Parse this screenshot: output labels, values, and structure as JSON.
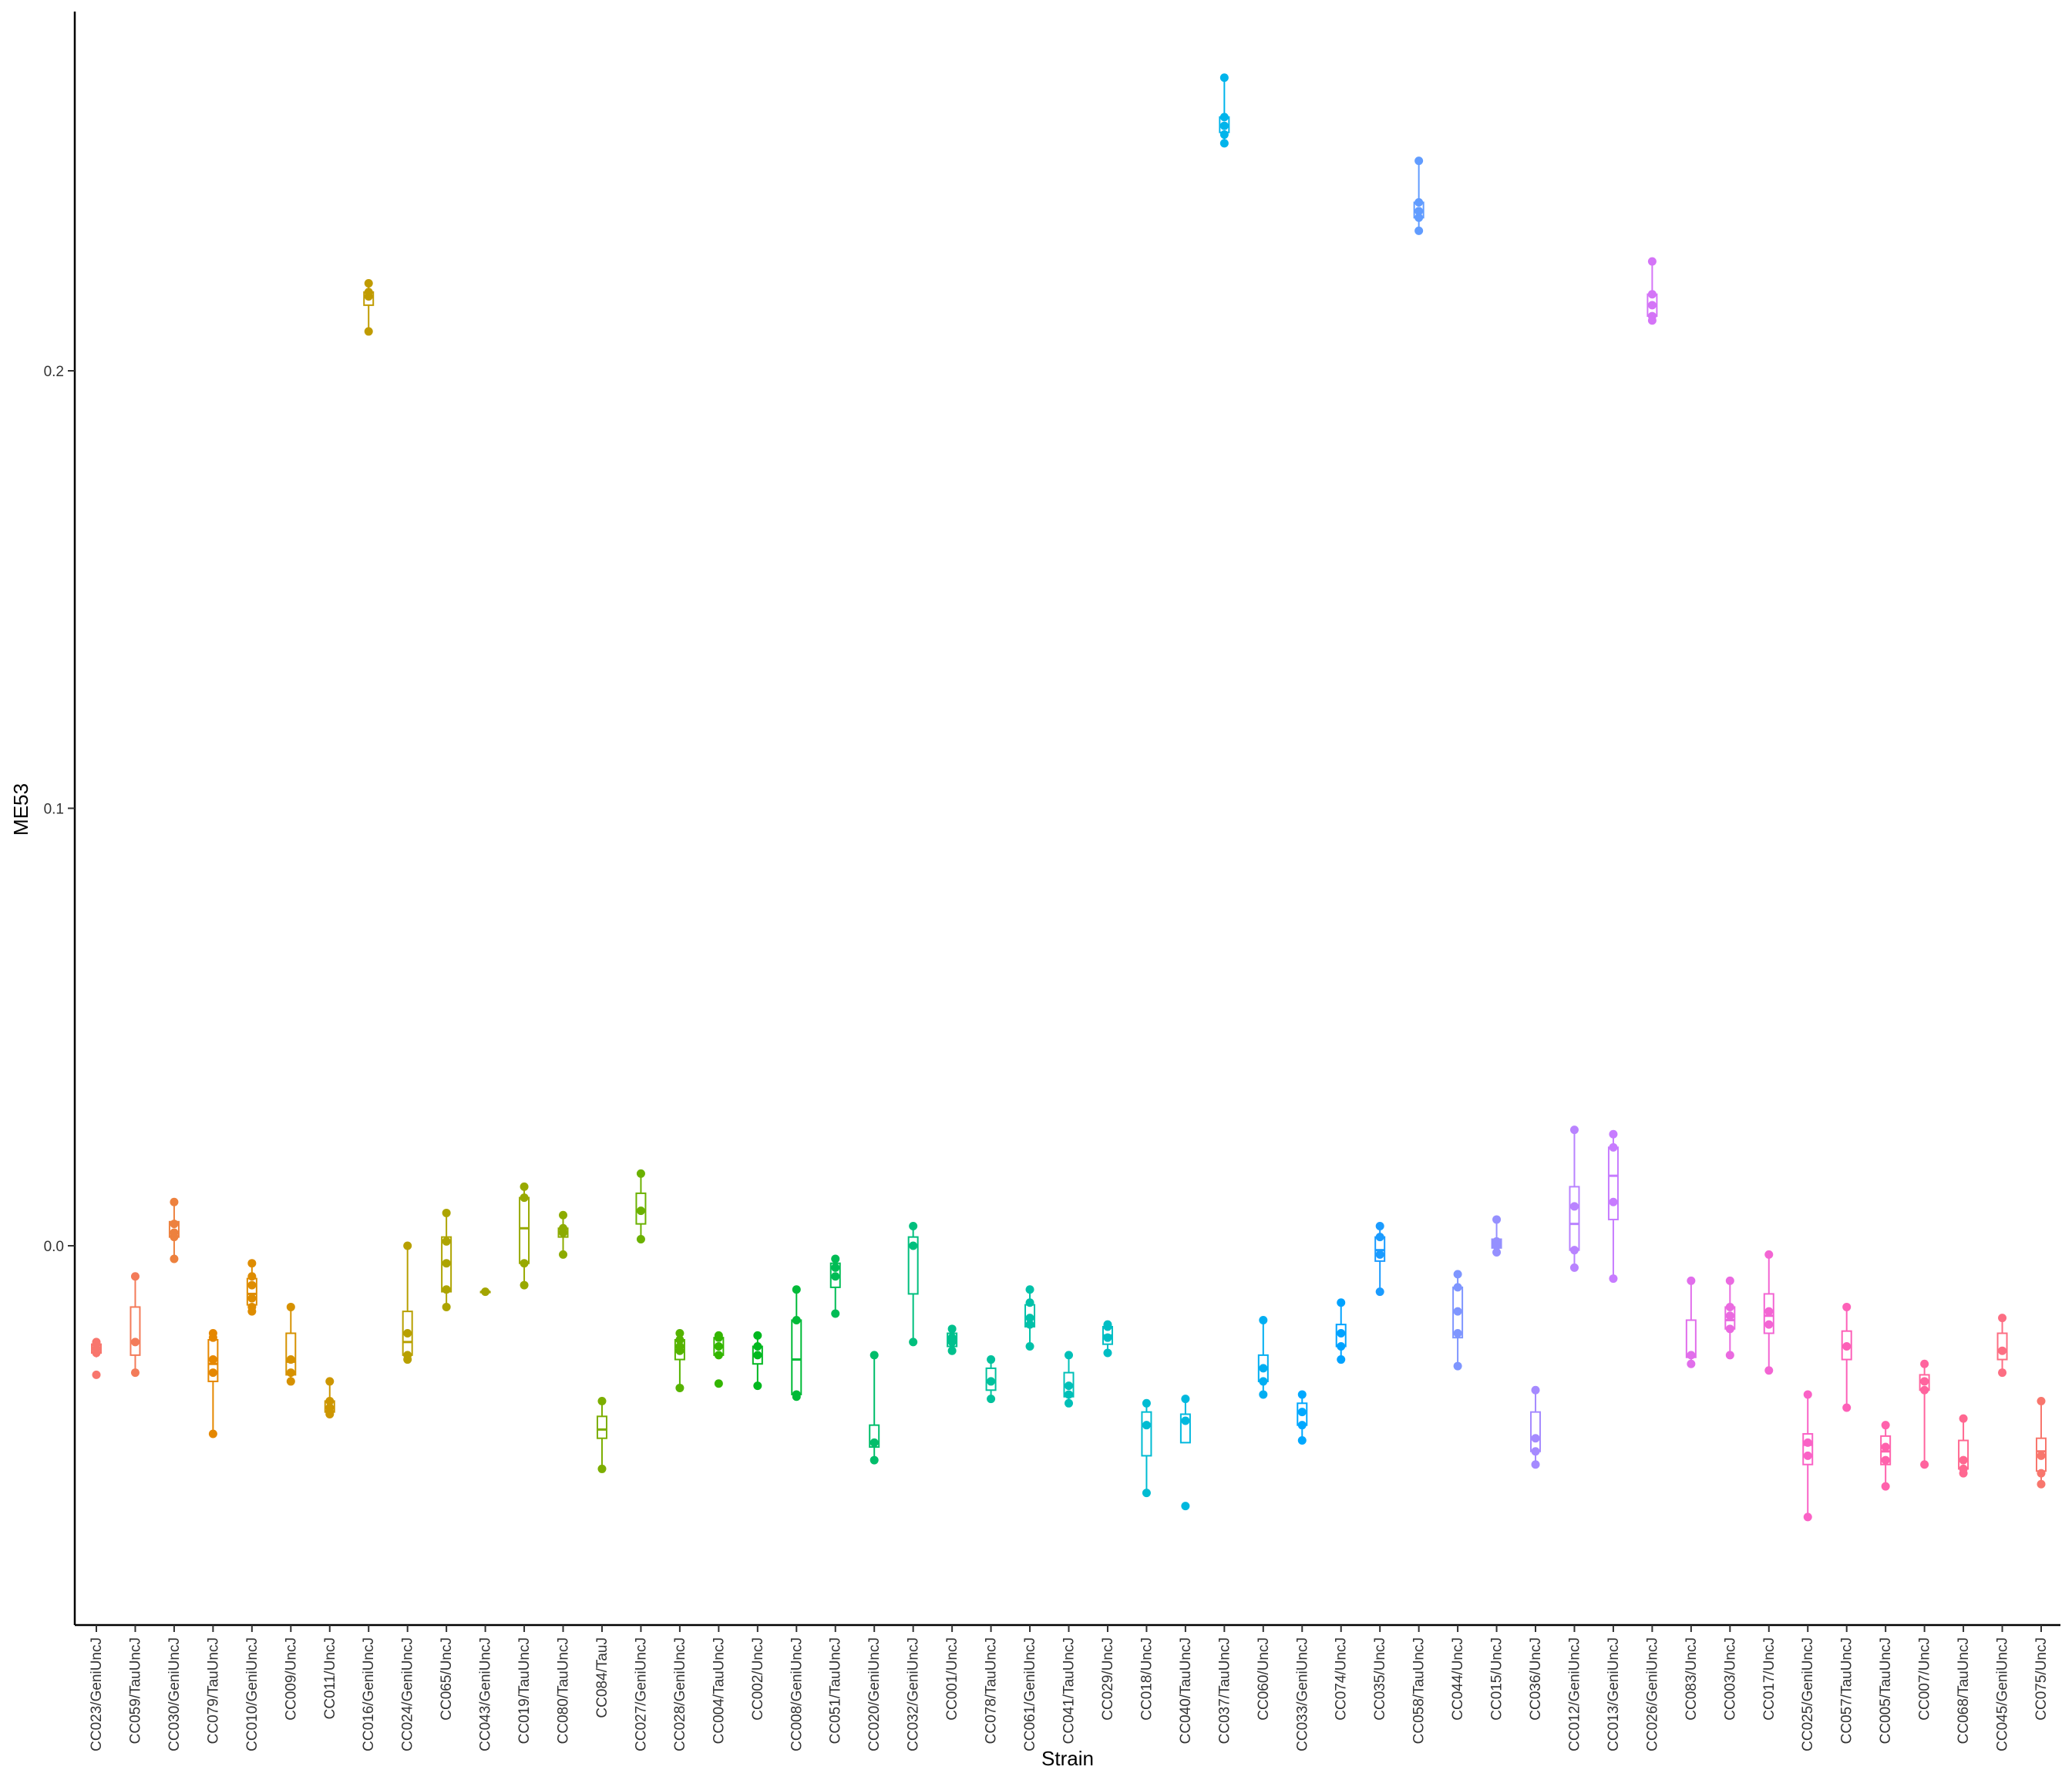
{
  "chart_data": {
    "type": "boxplot",
    "xlabel": "Strain",
    "ylabel": "ME53",
    "ylim": [
      -0.066,
      0.28
    ],
    "yticks": [
      0.0,
      0.1,
      0.2
    ],
    "ytick_labels": [
      "0.0",
      "0.1",
      "0.2"
    ],
    "grid": false,
    "legend": "none",
    "groups": [
      {
        "strain": "CC023/GeniUncJ",
        "color": "#F8766D",
        "box": [
          -0.0255,
          -0.0245,
          -0.0235,
          -0.0225,
          -0.022
        ],
        "points": [
          -0.0295,
          -0.0245,
          -0.0235,
          -0.0225,
          -0.022
        ]
      },
      {
        "strain": "CC059/TauUncJ",
        "color": "#F37B59",
        "box": [
          -0.029,
          -0.025,
          -0.022,
          -0.014,
          -0.007
        ],
        "points": [
          -0.029,
          -0.022,
          -0.007
        ]
      },
      {
        "strain": "CC030/GeniUncJ",
        "color": "#ED813E",
        "box": [
          -0.003,
          0.002,
          0.003,
          0.0055,
          0.01
        ],
        "points": [
          -0.003,
          0.002,
          0.003,
          0.005,
          0.01
        ]
      },
      {
        "strain": "CC079/TauUncJ",
        "color": "#E58700",
        "box": [
          -0.043,
          -0.031,
          -0.027,
          -0.0215,
          -0.02
        ],
        "points": [
          -0.043,
          -0.029,
          -0.026,
          -0.021,
          -0.02
        ]
      },
      {
        "strain": "CC010/GeniUncJ",
        "color": "#DE8C00",
        "box": [
          -0.015,
          -0.0135,
          -0.011,
          -0.0075,
          -0.004
        ],
        "points": [
          -0.015,
          -0.014,
          -0.012,
          -0.009,
          -0.007,
          -0.004
        ]
      },
      {
        "strain": "CC009/UncJ",
        "color": "#D69100",
        "box": [
          -0.031,
          -0.0295,
          -0.0265,
          -0.02,
          -0.014
        ],
        "points": [
          -0.031,
          -0.029,
          -0.026,
          -0.014
        ]
      },
      {
        "strain": "CC011/UncJ",
        "color": "#CD9600",
        "box": [
          -0.0385,
          -0.038,
          -0.037,
          -0.0355,
          -0.031
        ],
        "points": [
          -0.0385,
          -0.038,
          -0.037,
          -0.0355,
          -0.031
        ]
      },
      {
        "strain": "CC016/GeniUncJ",
        "color": "#C09B00",
        "box": [
          0.209,
          0.215,
          0.217,
          0.218,
          0.22
        ],
        "points": [
          0.209,
          0.217,
          0.218,
          0.22
        ]
      },
      {
        "strain": "CC024/GeniUncJ",
        "color": "#B8A000",
        "box": [
          -0.026,
          -0.025,
          -0.022,
          -0.015,
          0.0
        ],
        "points": [
          -0.026,
          -0.025,
          -0.02,
          0.0
        ]
      },
      {
        "strain": "CC065/UncJ",
        "color": "#ADA400",
        "box": [
          -0.014,
          -0.0105,
          -0.004,
          0.002,
          0.0075
        ],
        "points": [
          -0.014,
          -0.01,
          -0.004,
          0.001,
          0.0075
        ]
      },
      {
        "strain": "CC043/GeniUncJ",
        "color": "#A3A500",
        "box": [
          -0.0105,
          -0.0105,
          -0.0105,
          -0.0105,
          -0.0105
        ],
        "points": [
          -0.0105
        ]
      },
      {
        "strain": "CC019/TauUncJ",
        "color": "#98A900",
        "box": [
          -0.009,
          -0.004,
          0.004,
          0.011,
          0.0135
        ],
        "points": [
          -0.009,
          -0.004,
          0.011,
          0.0135
        ]
      },
      {
        "strain": "CC080/TauUncJ",
        "color": "#8CAB00",
        "box": [
          -0.002,
          0.002,
          0.003,
          0.004,
          0.007
        ],
        "points": [
          -0.002,
          0.003,
          0.004,
          0.007
        ]
      },
      {
        "strain": "CC084/TauJ",
        "color": "#7CAE00",
        "box": [
          -0.051,
          -0.044,
          -0.042,
          -0.039,
          -0.0355
        ],
        "points": [
          -0.051,
          -0.0355
        ]
      },
      {
        "strain": "CC027/GeniUncJ",
        "color": "#6BB100",
        "box": [
          0.0015,
          0.005,
          0.008,
          0.012,
          0.0165
        ],
        "points": [
          0.0015,
          0.008,
          0.0165
        ]
      },
      {
        "strain": "CC028/GeniUncJ",
        "color": "#55B300",
        "box": [
          -0.0325,
          -0.026,
          -0.024,
          -0.0215,
          -0.02
        ],
        "points": [
          -0.0325,
          -0.024,
          -0.023,
          -0.0215,
          -0.02
        ]
      },
      {
        "strain": "CC004/TauUncJ",
        "color": "#33B600",
        "box": [
          -0.025,
          -0.025,
          -0.023,
          -0.021,
          -0.0205
        ],
        "points": [
          -0.0315,
          -0.025,
          -0.023,
          -0.021,
          -0.0205
        ]
      },
      {
        "strain": "CC002/UncJ",
        "color": "#00B81F",
        "box": [
          -0.032,
          -0.027,
          -0.025,
          -0.023,
          -0.0205
        ],
        "points": [
          -0.032,
          -0.025,
          -0.023,
          -0.0205
        ]
      },
      {
        "strain": "CC008/GeniUncJ",
        "color": "#00BA38",
        "box": [
          -0.0345,
          -0.034,
          -0.026,
          -0.017,
          -0.01
        ],
        "points": [
          -0.0345,
          -0.034,
          -0.017,
          -0.01
        ]
      },
      {
        "strain": "CC051/TauUncJ",
        "color": "#00BC55",
        "box": [
          -0.0155,
          -0.0095,
          -0.007,
          -0.004,
          -0.003
        ],
        "points": [
          -0.0155,
          -0.007,
          -0.005,
          -0.003
        ]
      },
      {
        "strain": "CC020/GeniUncJ",
        "color": "#00BD6A",
        "box": [
          -0.049,
          -0.046,
          -0.045,
          -0.041,
          -0.025
        ],
        "points": [
          -0.049,
          -0.045,
          -0.025
        ]
      },
      {
        "strain": "CC032/GeniUncJ",
        "color": "#00BF7D",
        "box": [
          -0.022,
          -0.011,
          0.0,
          0.002,
          0.0045
        ],
        "points": [
          -0.022,
          0.0,
          0.0045
        ]
      },
      {
        "strain": "CC001/UncJ",
        "color": "#00C08D",
        "box": [
          -0.024,
          -0.023,
          -0.0215,
          -0.02,
          -0.019
        ],
        "points": [
          -0.024,
          -0.022,
          -0.021,
          -0.019
        ]
      },
      {
        "strain": "CC078/TauUncJ",
        "color": "#00C19C",
        "box": [
          -0.035,
          -0.033,
          -0.031,
          -0.028,
          -0.026
        ],
        "points": [
          -0.035,
          -0.031,
          -0.026
        ]
      },
      {
        "strain": "CC061/GeniUncJ",
        "color": "#00C1A9",
        "box": [
          -0.023,
          -0.0185,
          -0.0165,
          -0.0135,
          -0.01
        ],
        "points": [
          -0.023,
          -0.018,
          -0.0165,
          -0.013,
          -0.01
        ]
      },
      {
        "strain": "CC041/TauUncJ",
        "color": "#00C0B8",
        "box": [
          -0.036,
          -0.0345,
          -0.032,
          -0.029,
          -0.025
        ],
        "points": [
          -0.036,
          -0.034,
          -0.032,
          -0.025
        ]
      },
      {
        "strain": "CC029/UncJ",
        "color": "#00BEC4",
        "box": [
          -0.0245,
          -0.0225,
          -0.0205,
          -0.0185,
          -0.018
        ],
        "points": [
          -0.0245,
          -0.021,
          -0.0185,
          -0.018
        ]
      },
      {
        "strain": "CC018/UncJ",
        "color": "#00BCD2",
        "box": [
          -0.0565,
          -0.048,
          -0.041,
          -0.038,
          -0.036
        ],
        "points": [
          -0.0565,
          -0.041,
          -0.036
        ]
      },
      {
        "strain": "CC040/TauUncJ",
        "color": "#00B8DE",
        "box": [
          -0.045,
          -0.045,
          -0.04,
          -0.0385,
          -0.035
        ],
        "points": [
          -0.0595,
          -0.04,
          -0.035
        ]
      },
      {
        "strain": "CC037/TauUncJ",
        "color": "#00B4EB",
        "box": [
          0.252,
          0.2545,
          0.256,
          0.258,
          0.267
        ],
        "points": [
          0.252,
          0.254,
          0.256,
          0.258,
          0.267
        ]
      },
      {
        "strain": "CC060/UncJ",
        "color": "#00AEF2",
        "box": [
          -0.034,
          -0.031,
          -0.028,
          -0.025,
          -0.017
        ],
        "points": [
          -0.034,
          -0.031,
          -0.028,
          -0.017
        ]
      },
      {
        "strain": "CC033/GeniUncJ",
        "color": "#00A8FF",
        "box": [
          -0.0445,
          -0.041,
          -0.038,
          -0.036,
          -0.034
        ],
        "points": [
          -0.0445,
          -0.041,
          -0.038,
          -0.034
        ]
      },
      {
        "strain": "CC074/UncJ",
        "color": "#00A2FF",
        "box": [
          -0.026,
          -0.023,
          -0.02,
          -0.018,
          -0.013
        ],
        "points": [
          -0.026,
          -0.023,
          -0.02,
          -0.013
        ]
      },
      {
        "strain": "CC035/UncJ",
        "color": "#1A9BFF",
        "box": [
          -0.0105,
          -0.0035,
          -0.001,
          0.002,
          0.0045
        ],
        "points": [
          -0.0105,
          -0.002,
          0.002,
          0.0045
        ]
      },
      {
        "strain": "CC058/TauUncJ",
        "color": "#619CFF",
        "box": [
          0.232,
          0.235,
          0.2365,
          0.2385,
          0.248
        ],
        "points": [
          0.232,
          0.235,
          0.2365,
          0.2385,
          0.248
        ]
      },
      {
        "strain": "CC044/UncJ",
        "color": "#7F96FF",
        "box": [
          -0.0275,
          -0.021,
          -0.015,
          -0.0095,
          -0.0065
        ],
        "points": [
          -0.0275,
          -0.02,
          -0.015,
          -0.0095,
          -0.0065
        ]
      },
      {
        "strain": "CC015/UncJ",
        "color": "#9590FF",
        "box": [
          -0.0015,
          -0.0005,
          0.0005,
          0.0015,
          0.006
        ],
        "points": [
          -0.0015,
          0.0,
          0.001,
          0.006
        ]
      },
      {
        "strain": "CC036/UncJ",
        "color": "#A58AFF",
        "box": [
          -0.05,
          -0.047,
          -0.044,
          -0.038,
          -0.033
        ],
        "points": [
          -0.05,
          -0.047,
          -0.044,
          -0.033
        ]
      },
      {
        "strain": "CC012/GeniUncJ",
        "color": "#B983FF",
        "box": [
          -0.005,
          -0.001,
          0.005,
          0.0135,
          0.0265
        ],
        "points": [
          -0.005,
          -0.001,
          0.009,
          0.0265
        ]
      },
      {
        "strain": "CC013/GeniUncJ",
        "color": "#C77CFF",
        "box": [
          -0.0075,
          0.006,
          0.016,
          0.0225,
          0.0255
        ],
        "points": [
          -0.0075,
          0.01,
          0.0225,
          0.0255
        ]
      },
      {
        "strain": "CC026/GeniUncJ",
        "color": "#D474F7",
        "box": [
          0.2115,
          0.2125,
          0.215,
          0.2175,
          0.225
        ],
        "points": [
          0.2115,
          0.2125,
          0.215,
          0.2175,
          0.225
        ]
      },
      {
        "strain": "CC083/UncJ",
        "color": "#E16EEB",
        "box": [
          -0.027,
          -0.0255,
          -0.025,
          -0.017,
          -0.008
        ],
        "points": [
          -0.027,
          -0.025,
          -0.008
        ]
      },
      {
        "strain": "CC003/UncJ",
        "color": "#EA6AE0",
        "box": [
          -0.025,
          -0.019,
          -0.017,
          -0.014,
          -0.008
        ],
        "points": [
          -0.025,
          -0.019,
          -0.016,
          -0.014,
          -0.008
        ]
      },
      {
        "strain": "CC017/UncJ",
        "color": "#F365D3",
        "box": [
          -0.0285,
          -0.02,
          -0.016,
          -0.011,
          -0.002
        ],
        "points": [
          -0.0285,
          -0.018,
          -0.015,
          -0.002
        ]
      },
      {
        "strain": "CC025/GeniUncJ",
        "color": "#FA62C6",
        "box": [
          -0.062,
          -0.05,
          -0.0455,
          -0.043,
          -0.034
        ],
        "points": [
          -0.062,
          -0.048,
          -0.045,
          -0.034
        ]
      },
      {
        "strain": "CC057/TauUncJ",
        "color": "#FD61B8",
        "box": [
          -0.037,
          -0.026,
          -0.023,
          -0.0195,
          -0.014
        ],
        "points": [
          -0.037,
          -0.023,
          -0.014
        ]
      },
      {
        "strain": "CC005/TauUncJ",
        "color": "#FF62AC",
        "box": [
          -0.055,
          -0.05,
          -0.047,
          -0.0435,
          -0.041
        ],
        "points": [
          -0.055,
          -0.049,
          -0.046,
          -0.041
        ]
      },
      {
        "strain": "CC007/UncJ",
        "color": "#FF649E",
        "box": [
          -0.05,
          -0.033,
          -0.031,
          -0.0295,
          -0.027
        ],
        "points": [
          -0.05,
          -0.033,
          -0.031,
          -0.027
        ]
      },
      {
        "strain": "CC068/TauUncJ",
        "color": "#FF6891",
        "box": [
          -0.052,
          -0.051,
          -0.049,
          -0.0445,
          -0.0395
        ],
        "points": [
          -0.052,
          -0.051,
          -0.049,
          -0.0395
        ]
      },
      {
        "strain": "CC045/GeniUncJ",
        "color": "#FC6E83",
        "box": [
          -0.029,
          -0.026,
          -0.024,
          -0.02,
          -0.0165
        ],
        "points": [
          -0.029,
          -0.024,
          -0.0165
        ]
      },
      {
        "strain": "CC075/UncJ",
        "color": "#F8766D",
        "box": [
          -0.0545,
          -0.0515,
          -0.047,
          -0.044,
          -0.0355
        ],
        "points": [
          -0.0545,
          -0.052,
          -0.048,
          -0.0355
        ]
      }
    ]
  }
}
